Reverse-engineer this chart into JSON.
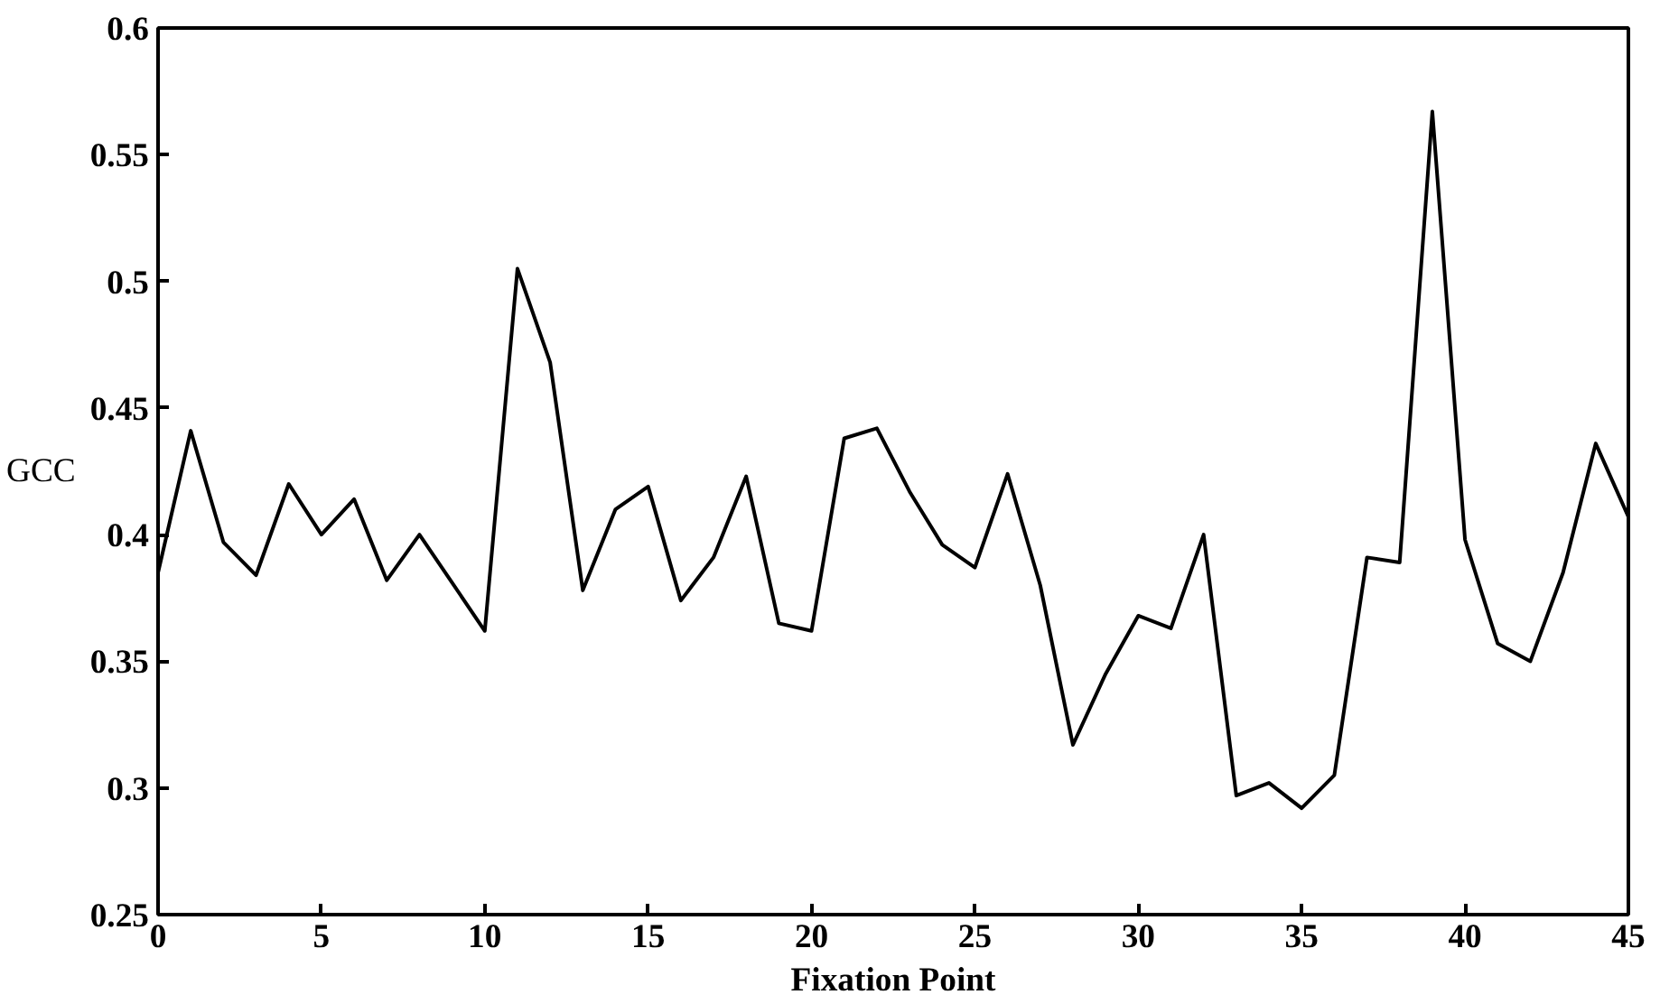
{
  "chart_data": {
    "type": "line",
    "xlabel": "Fixation Point",
    "ylabel": "GCC",
    "x": [
      0,
      1,
      2,
      3,
      4,
      5,
      6,
      7,
      8,
      9,
      10,
      11,
      12,
      13,
      14,
      15,
      16,
      17,
      18,
      19,
      20,
      21,
      22,
      23,
      24,
      25,
      26,
      27,
      28,
      29,
      30,
      31,
      32,
      33,
      34,
      35,
      36,
      37,
      38,
      39,
      40,
      41,
      42,
      43,
      44,
      45
    ],
    "series": [
      {
        "color": "#000000",
        "values": [
          0.385,
          0.441,
          0.397,
          0.384,
          0.42,
          0.4,
          0.414,
          0.382,
          0.4,
          0.381,
          0.362,
          0.505,
          0.468,
          0.378,
          0.41,
          0.419,
          0.374,
          0.391,
          0.423,
          0.365,
          0.362,
          0.438,
          0.442,
          0.417,
          0.396,
          0.387,
          0.424,
          0.38,
          0.317,
          0.345,
          0.368,
          0.363,
          0.4,
          0.297,
          0.302,
          0.292,
          0.305,
          0.391,
          0.389,
          0.567,
          0.398,
          0.357,
          0.35,
          0.385,
          0.436,
          0.407
        ]
      }
    ],
    "xlim": [
      0,
      45
    ],
    "ylim": [
      0.25,
      0.6
    ],
    "xticks": [
      0,
      5,
      10,
      15,
      20,
      25,
      30,
      35,
      40,
      45
    ],
    "yticks": [
      0.25,
      0.3,
      0.35,
      0.4,
      0.45,
      0.5,
      0.55,
      0.6
    ],
    "grid": false,
    "marker": "none",
    "line_style": "solid"
  }
}
